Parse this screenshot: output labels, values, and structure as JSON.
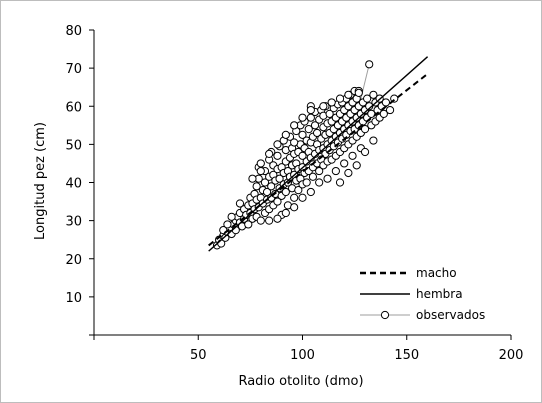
{
  "chart_data": {
    "type": "scatter",
    "title": "",
    "xlabel": "Radio otolito (dmo)",
    "ylabel": "Longitud pez (cm)",
    "xlim": [
      0,
      200
    ],
    "ylim": [
      0,
      80
    ],
    "x_ticks": [
      50,
      100,
      150,
      200
    ],
    "y_ticks": [
      10,
      20,
      30,
      40,
      50,
      60,
      70,
      80
    ],
    "grid": false,
    "legend_position": "bottom-right",
    "series": [
      {
        "name": "macho",
        "type": "line",
        "style": "dashed",
        "color": "#000000",
        "points": [
          [
            55,
            23.5
          ],
          [
            160,
            68.5
          ]
        ]
      },
      {
        "name": "hembra",
        "type": "line",
        "style": "solid",
        "color": "#000000",
        "points": [
          [
            55,
            22.0
          ],
          [
            160,
            73.0
          ]
        ]
      },
      {
        "name": "observados",
        "type": "scatter",
        "marker": "open-circle",
        "color": "#000000",
        "line_color": "#9e9e9e",
        "points": [
          [
            59,
            23.5
          ],
          [
            60,
            25
          ],
          [
            61,
            24
          ],
          [
            62,
            26
          ],
          [
            63,
            25.5
          ],
          [
            64,
            27
          ],
          [
            65,
            28
          ],
          [
            66,
            26.5
          ],
          [
            67,
            29
          ],
          [
            68,
            30
          ],
          [
            68,
            27.5
          ],
          [
            69,
            31
          ],
          [
            70,
            29.5
          ],
          [
            70,
            32
          ],
          [
            71,
            28.5
          ],
          [
            72,
            30.5
          ],
          [
            72,
            33
          ],
          [
            73,
            31.5
          ],
          [
            74,
            29
          ],
          [
            74,
            34
          ],
          [
            75,
            32
          ],
          [
            75,
            36
          ],
          [
            76,
            30.5
          ],
          [
            76,
            34.5
          ],
          [
            77,
            33
          ],
          [
            77,
            37
          ],
          [
            78,
            31
          ],
          [
            78,
            35.5
          ],
          [
            78,
            39
          ],
          [
            79,
            33.5
          ],
          [
            79,
            41
          ],
          [
            79,
            44
          ],
          [
            80,
            30
          ],
          [
            80,
            36
          ],
          [
            80,
            45
          ],
          [
            81,
            34.5
          ],
          [
            81,
            38
          ],
          [
            82,
            32
          ],
          [
            82,
            40
          ],
          [
            82,
            43
          ],
          [
            83,
            35.5
          ],
          [
            83,
            37.5
          ],
          [
            84,
            33
          ],
          [
            84,
            41.5
          ],
          [
            84,
            46
          ],
          [
            85,
            36
          ],
          [
            85,
            39
          ],
          [
            85,
            48
          ],
          [
            86,
            34
          ],
          [
            86,
            42
          ],
          [
            86,
            44.5
          ],
          [
            87,
            37
          ],
          [
            87,
            40.5
          ],
          [
            88,
            35
          ],
          [
            88,
            43.5
          ],
          [
            88,
            47
          ],
          [
            89,
            38.5
          ],
          [
            89,
            41
          ],
          [
            89,
            49.5
          ],
          [
            90,
            36.5
          ],
          [
            90,
            44
          ],
          [
            90,
            31.5
          ],
          [
            91,
            39.5
          ],
          [
            91,
            42.5
          ],
          [
            91,
            51
          ],
          [
            92,
            37.5
          ],
          [
            92,
            45.5
          ],
          [
            92,
            48.5
          ],
          [
            93,
            40
          ],
          [
            93,
            43
          ],
          [
            93,
            34
          ],
          [
            94,
            41.5
          ],
          [
            94,
            46.5
          ],
          [
            94,
            52
          ],
          [
            95,
            38.5
          ],
          [
            95,
            44.5
          ],
          [
            95,
            49
          ],
          [
            96,
            42
          ],
          [
            96,
            47.5
          ],
          [
            96,
            36
          ],
          [
            97,
            40.5
          ],
          [
            97,
            45
          ],
          [
            97,
            53.5
          ],
          [
            98,
            43.5
          ],
          [
            98,
            48
          ],
          [
            98,
            38
          ],
          [
            99,
            41
          ],
          [
            99,
            50
          ],
          [
            99,
            55
          ],
          [
            100,
            44
          ],
          [
            100,
            47
          ],
          [
            100,
            39.5
          ],
          [
            100,
            52.5
          ],
          [
            101,
            42.5
          ],
          [
            101,
            49
          ],
          [
            101,
            56
          ],
          [
            102,
            45.5
          ],
          [
            102,
            51
          ],
          [
            102,
            40
          ],
          [
            103,
            43
          ],
          [
            103,
            48
          ],
          [
            103,
            54
          ],
          [
            104,
            46.5
          ],
          [
            104,
            50.5
          ],
          [
            104,
            57
          ],
          [
            104,
            60
          ],
          [
            105,
            44
          ],
          [
            105,
            52
          ],
          [
            105,
            41.5
          ],
          [
            106,
            47.5
          ],
          [
            106,
            55
          ],
          [
            106,
            58.5
          ],
          [
            107,
            45
          ],
          [
            107,
            50
          ],
          [
            107,
            53
          ],
          [
            108,
            48.5
          ],
          [
            108,
            56.5
          ],
          [
            108,
            43
          ],
          [
            109,
            51.5
          ],
          [
            109,
            46
          ],
          [
            109,
            59
          ],
          [
            110,
            49
          ],
          [
            110,
            54.5
          ],
          [
            110,
            57.5
          ],
          [
            110,
            44.5
          ],
          [
            111,
            52.5
          ],
          [
            111,
            47.5
          ],
          [
            111,
            60
          ],
          [
            112,
            50
          ],
          [
            112,
            55.5
          ],
          [
            112,
            45.5
          ],
          [
            113,
            53
          ],
          [
            113,
            48.5
          ],
          [
            113,
            58
          ],
          [
            114,
            51
          ],
          [
            114,
            56
          ],
          [
            114,
            46
          ],
          [
            115,
            54
          ],
          [
            115,
            49.5
          ],
          [
            115,
            59.5
          ],
          [
            116,
            52
          ],
          [
            116,
            57
          ],
          [
            116,
            47
          ],
          [
            117,
            55
          ],
          [
            117,
            50.5
          ],
          [
            117,
            60.5
          ],
          [
            118,
            53
          ],
          [
            118,
            58
          ],
          [
            118,
            48
          ],
          [
            119,
            56
          ],
          [
            119,
            51.5
          ],
          [
            119,
            61
          ],
          [
            120,
            54
          ],
          [
            120,
            49
          ],
          [
            120,
            59
          ],
          [
            121,
            57
          ],
          [
            121,
            52.5
          ],
          [
            121,
            62
          ],
          [
            122,
            55
          ],
          [
            122,
            50
          ],
          [
            122,
            60
          ],
          [
            123,
            58
          ],
          [
            123,
            53.5
          ],
          [
            123,
            63
          ],
          [
            124,
            56
          ],
          [
            124,
            51
          ],
          [
            124,
            61
          ],
          [
            125,
            59
          ],
          [
            125,
            54
          ],
          [
            125,
            64
          ],
          [
            126,
            57
          ],
          [
            126,
            52
          ],
          [
            126,
            62
          ],
          [
            127,
            60
          ],
          [
            127,
            55
          ],
          [
            127,
            64
          ],
          [
            128,
            58
          ],
          [
            128,
            53
          ],
          [
            129,
            61
          ],
          [
            129,
            56
          ],
          [
            130,
            59
          ],
          [
            130,
            54
          ],
          [
            131,
            62
          ],
          [
            131,
            57
          ],
          [
            132,
            71
          ],
          [
            132,
            60
          ],
          [
            133,
            55
          ],
          [
            133,
            58
          ],
          [
            134,
            63
          ],
          [
            135,
            56
          ],
          [
            135,
            61
          ],
          [
            136,
            59
          ],
          [
            137,
            57
          ],
          [
            137,
            62
          ],
          [
            138,
            60
          ],
          [
            139,
            58
          ],
          [
            140,
            61
          ],
          [
            142,
            59
          ],
          [
            144,
            62
          ],
          [
            88,
            30.5
          ],
          [
            92,
            32
          ],
          [
            84,
            30
          ],
          [
            96,
            33.5
          ],
          [
            100,
            36
          ],
          [
            104,
            37.5
          ],
          [
            108,
            40
          ],
          [
            112,
            41
          ],
          [
            116,
            43
          ],
          [
            120,
            45
          ],
          [
            124,
            47
          ],
          [
            128,
            49
          ],
          [
            118,
            40
          ],
          [
            122,
            42.5
          ],
          [
            126,
            44.5
          ],
          [
            130,
            48
          ],
          [
            134,
            51
          ],
          [
            104,
            59
          ],
          [
            100,
            57
          ],
          [
            96,
            55
          ],
          [
            110,
            60
          ],
          [
            114,
            61
          ],
          [
            118,
            62
          ],
          [
            122,
            63
          ],
          [
            127,
            63.5
          ],
          [
            76,
            41
          ],
          [
            80,
            43
          ],
          [
            84,
            47.5
          ],
          [
            88,
            50
          ],
          [
            92,
            52.5
          ],
          [
            96,
            50.5
          ],
          [
            70,
            34.5
          ],
          [
            66,
            31
          ],
          [
            64,
            29
          ],
          [
            62,
            27.5
          ]
        ]
      }
    ]
  }
}
